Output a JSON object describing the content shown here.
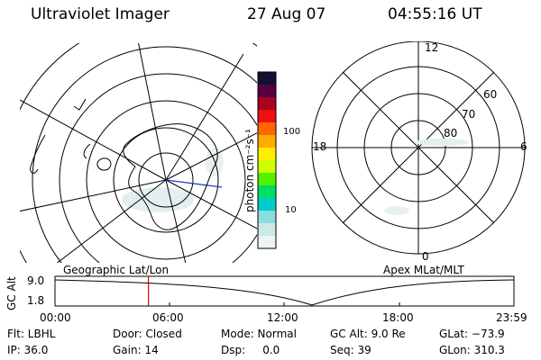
{
  "header": {
    "title": "Ultraviolet Imager",
    "date": "27 Aug 07",
    "time": "04:55:16 UT"
  },
  "colorbar": {
    "label": "photon cm⁻²s⁻¹",
    "ticks": [
      "100",
      "10"
    ],
    "colors": [
      "#111133",
      "#550044",
      "#aa0022",
      "#ee1111",
      "#ff6600",
      "#ffaa00",
      "#ffee00",
      "#ccff00",
      "#55ee00",
      "#00dd66",
      "#00cccc",
      "#88dddd",
      "#cce8e8",
      "#eef4f4"
    ]
  },
  "polar_plot": {
    "mlt_labels": {
      "top": "12",
      "left": "18",
      "right": "6",
      "bottom": "0"
    },
    "lat_labels": [
      "60",
      "70",
      "80"
    ]
  },
  "timeline": {
    "ylabel": "GC Alt",
    "ymax": "9.0",
    "ymin": "1.8",
    "left_title": "Geographic Lat/Lon",
    "right_title": "Apex MLat/MLT",
    "ticks": [
      "00:00",
      "06:00",
      "12:00",
      "18:00",
      "23:59"
    ],
    "marker_color": "#dd0000",
    "marker_fraction": 0.2036
  },
  "info": {
    "filter": "Flt: LBHL",
    "door": "Door: Closed",
    "mode": "Mode: Normal",
    "gc_alt": "GC Alt: 9.0 Re",
    "glat": "GLat: −73.9",
    "ip": "IP: 36.0",
    "gain": "Gain: 14",
    "dsp": "Dsp:     0.0",
    "seq": "Seq: 39",
    "glon": "GLon: 310.3"
  }
}
